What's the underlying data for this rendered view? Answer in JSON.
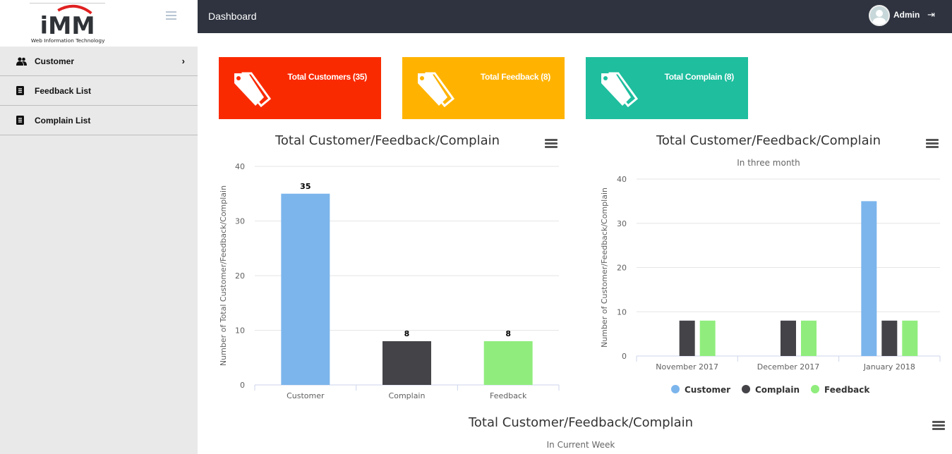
{
  "sidebar": {
    "logo_text": "iMM",
    "logo_caption": "Web Information Technology",
    "items": [
      {
        "label": "Customer",
        "icon": "users-icon",
        "has_submenu": true
      },
      {
        "label": "Feedback List",
        "icon": "list-icon"
      },
      {
        "label": "Complain List",
        "icon": "list-icon"
      }
    ]
  },
  "header": {
    "title": "Dashboard",
    "user": "Admin",
    "logout_icon": "sign-out-icon"
  },
  "cards": [
    {
      "label": "Total Customers (35)",
      "color": "#fa2a00",
      "icon": "tags-icon"
    },
    {
      "label": "Total Feedback (8)",
      "color": "#ffb300",
      "icon": "tags-icon"
    },
    {
      "label": "Total Complain (8)",
      "color": "#1ebe9e",
      "icon": "tags-icon"
    }
  ],
  "chart_data": [
    {
      "type": "bar",
      "title": "Total Customer/Feedback/Complain",
      "ylabel": "Number of Total Customer/Feedback/Complain",
      "categories": [
        "Customer",
        "Complain",
        "Feedback"
      ],
      "values": [
        35,
        8,
        8
      ],
      "colors": [
        "#7cb5ec",
        "#434348",
        "#90ed7d"
      ],
      "ylim": [
        0,
        40
      ],
      "yticks": [
        0,
        10,
        20,
        30,
        40
      ],
      "data_labels": true,
      "grid": true
    },
    {
      "type": "bar",
      "title": "Total Customer/Feedback/Complain",
      "subtitle": "In three month",
      "ylabel": "Number of Customer/Feedback/Complain",
      "categories": [
        "November 2017",
        "December 2017",
        "January 2018"
      ],
      "series": [
        {
          "name": "Customer",
          "values": [
            0,
            0,
            35
          ],
          "color": "#7cb5ec"
        },
        {
          "name": "Complain",
          "values": [
            8,
            8,
            8
          ],
          "color": "#434348"
        },
        {
          "name": "Feedback",
          "values": [
            8,
            8,
            8
          ],
          "color": "#90ed7d"
        }
      ],
      "ylim": [
        0,
        40
      ],
      "yticks": [
        0,
        10,
        20,
        30,
        40
      ],
      "legend": "bottom",
      "grid": true
    },
    {
      "type": "bar",
      "title": "Total Customer/Feedback/Complain",
      "subtitle": "In Current Week"
    }
  ]
}
